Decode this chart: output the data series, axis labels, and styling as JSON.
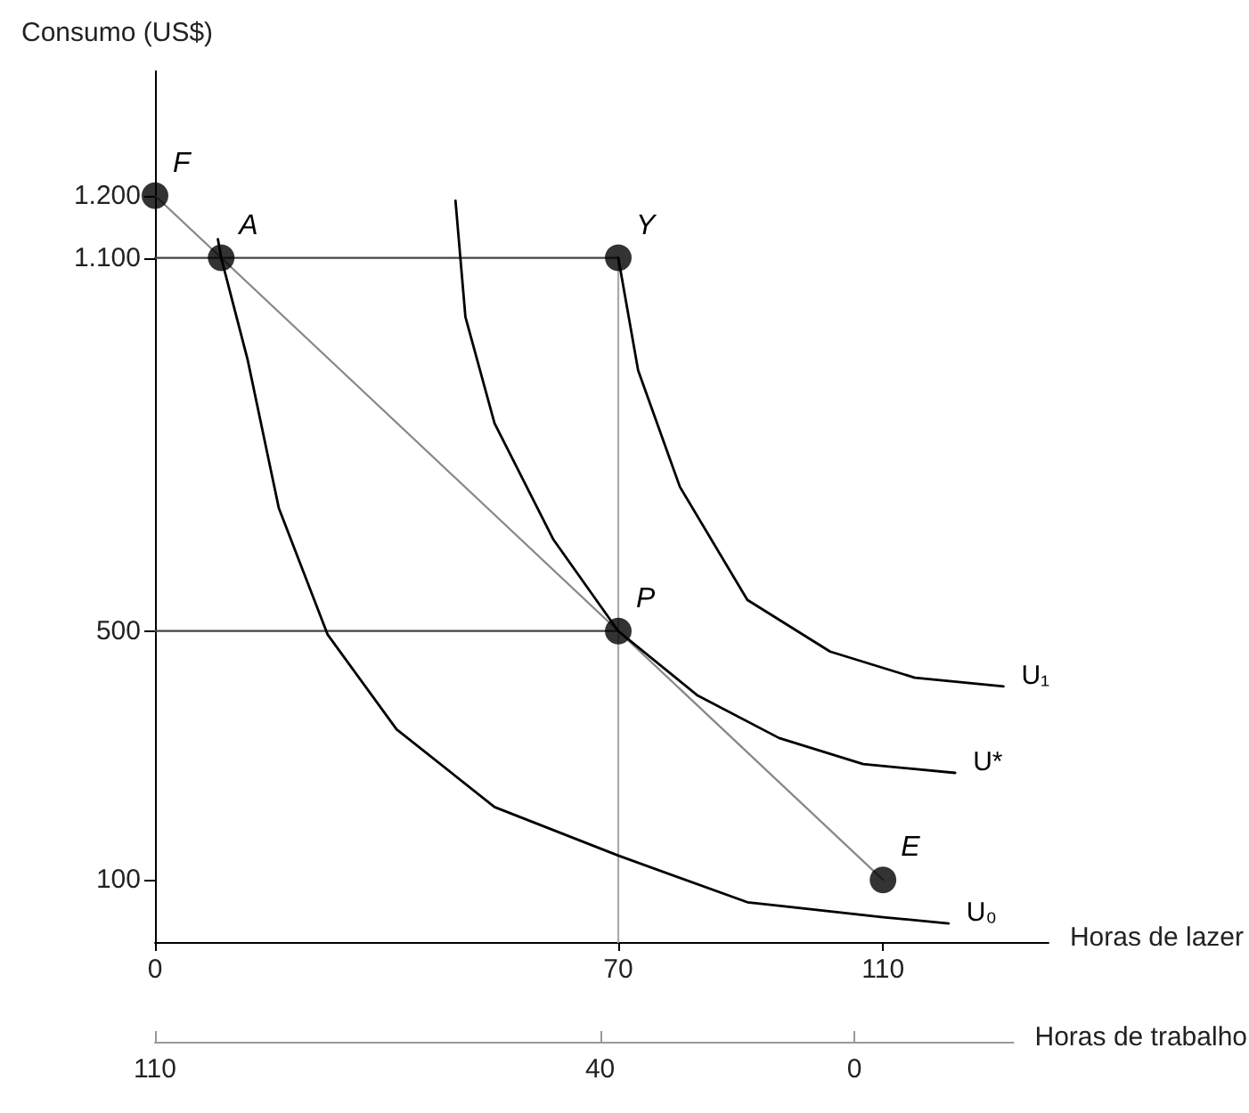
{
  "chart_data": {
    "type": "line",
    "ylabel": "Consumo (US$)",
    "xlabel": "Horas de lazer",
    "x2label": "Horas de trabalho",
    "xlim": [
      0,
      135
    ],
    "xticks": [
      0,
      70,
      110
    ],
    "x2lim": [
      110,
      -25
    ],
    "x2ticks": [
      110,
      40,
      0
    ],
    "ylim": [
      0,
      1400
    ],
    "yticks": [
      {
        "value": 100,
        "label": "100"
      },
      {
        "value": 500,
        "label": "500"
      },
      {
        "value": 1100,
        "label": "1.100"
      },
      {
        "value": 1200,
        "label": "1.200"
      }
    ],
    "grid": false,
    "legend": false,
    "marker": "none",
    "line_style": "solid",
    "series": [
      {
        "color": "#444444",
        "x": [
          0,
          70
        ],
        "values": [
          1100,
          1100
        ]
      },
      {
        "color": "#444444",
        "x": [
          0,
          70
        ],
        "values": [
          500,
          500
        ]
      },
      {
        "color": "#aaaaaa",
        "x": [
          70,
          70
        ],
        "values": [
          0,
          1100
        ]
      },
      {
        "color": "#888888",
        "x": [
          0,
          110
        ],
        "values": [
          1200,
          100
        ]
      },
      {
        "name": "U₀",
        "color": "#000000",
        "x": [
          9.5,
          10,
          14,
          18.7,
          26.1,
          36.5,
          51.3,
          70,
          89.5,
          110,
          119.9
        ],
        "values": [
          1130,
          1100,
          936,
          698,
          494,
          342,
          217,
          139,
          64,
          40,
          30
        ]
      },
      {
        "name": "U*",
        "color": "#000000",
        "x": [
          45.4,
          46.9,
          51.3,
          60.2,
          70,
          81.9,
          94.3,
          107,
          120.9
        ],
        "values": [
          1192,
          1005,
          834,
          647,
          500,
          397,
          328,
          286,
          272
        ]
      },
      {
        "name": "U₁",
        "color": "#000000",
        "x": [
          70,
          73,
          79.3,
          89.5,
          102,
          114.8,
          128.2
        ],
        "values": [
          1100,
          919,
          732,
          550,
          467,
          425,
          411
        ]
      },
      {
        "type": "scatter",
        "marker": "circle",
        "color": "#000000",
        "x": [
          0,
          10,
          70,
          70,
          110
        ],
        "values": [
          1200,
          1100,
          1100,
          500,
          100
        ]
      }
    ],
    "annotations": [
      {
        "text": "F",
        "x": 0,
        "y": 1200
      },
      {
        "text": "A",
        "x": 10,
        "y": 1100
      },
      {
        "text": "Y",
        "x": 70,
        "y": 1100
      },
      {
        "text": "P",
        "x": 70,
        "y": 500
      },
      {
        "text": "E",
        "x": 110,
        "y": 100
      }
    ]
  }
}
